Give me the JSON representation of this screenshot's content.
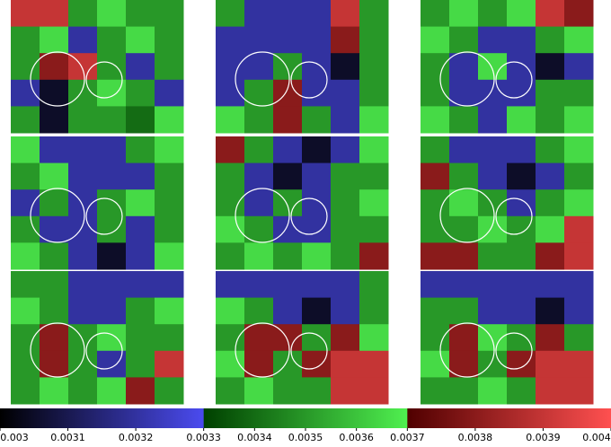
{
  "chart_data": {
    "type": "heatmap",
    "clim": [
      0.003,
      0.004
    ],
    "breaks": [
      0.0033,
      0.0037
    ],
    "colormap": [
      [
        "#000000",
        "#4b4bf0"
      ],
      [
        "#004000",
        "#50f050"
      ],
      [
        "#500000",
        "#ff5050"
      ]
    ],
    "ticks": [
      0.003,
      0.0031,
      0.0032,
      0.0033,
      0.0034,
      0.0035,
      0.0036,
      0.0037,
      0.0038,
      0.0039,
      0.004
    ],
    "panels": [
      {
        "values": [
          [
            0.0039,
            0.0039,
            0.0035,
            0.00365,
            0.0035,
            0.0035
          ],
          [
            0.0035,
            0.00365,
            0.0032,
            0.0035,
            0.00365,
            0.0035
          ],
          [
            0.0035,
            0.0038,
            0.0039,
            0.0035,
            0.0032,
            0.0035
          ],
          [
            0.0032,
            0.00305,
            0.0035,
            0.00365,
            0.0035,
            0.0032
          ],
          [
            0.0035,
            0.00305,
            0.0035,
            0.0035,
            0.0034,
            0.00365
          ]
        ]
      },
      {
        "values": [
          [
            0.0035,
            0.0032,
            0.0032,
            0.0032,
            0.0039,
            0.0035
          ],
          [
            0.0032,
            0.0032,
            0.0032,
            0.0032,
            0.0038,
            0.0035
          ],
          [
            0.0032,
            0.0032,
            0.0035,
            0.0032,
            0.00305,
            0.0035
          ],
          [
            0.0032,
            0.0035,
            0.0038,
            0.0032,
            0.0032,
            0.0035
          ],
          [
            0.00365,
            0.0035,
            0.0038,
            0.0035,
            0.0032,
            0.00365
          ]
        ]
      },
      {
        "values": [
          [
            0.0035,
            0.00365,
            0.0035,
            0.00365,
            0.0039,
            0.0038
          ],
          [
            0.00365,
            0.0035,
            0.0032,
            0.0032,
            0.0035,
            0.00365
          ],
          [
            0.0035,
            0.0032,
            0.00365,
            0.0032,
            0.00305,
            0.0032
          ],
          [
            0.0035,
            0.0032,
            0.0032,
            0.0032,
            0.0035,
            0.0035
          ],
          [
            0.00365,
            0.0035,
            0.0032,
            0.00365,
            0.0035,
            0.00365
          ]
        ]
      },
      {
        "values": [
          [
            0.00365,
            0.0032,
            0.0032,
            0.0032,
            0.0035,
            0.00365
          ],
          [
            0.0035,
            0.00365,
            0.0032,
            0.0032,
            0.0032,
            0.0035
          ],
          [
            0.0032,
            0.0035,
            0.0032,
            0.0035,
            0.00365,
            0.0035
          ],
          [
            0.0035,
            0.0032,
            0.0032,
            0.0035,
            0.0032,
            0.0035
          ],
          [
            0.00365,
            0.0035,
            0.0032,
            0.00305,
            0.0032,
            0.00365
          ]
        ]
      },
      {
        "values": [
          [
            0.0038,
            0.0035,
            0.0032,
            0.00305,
            0.0032,
            0.00365
          ],
          [
            0.0035,
            0.0032,
            0.00305,
            0.0032,
            0.0035,
            0.0035
          ],
          [
            0.0035,
            0.0032,
            0.0035,
            0.0032,
            0.0035,
            0.00365
          ],
          [
            0.00365,
            0.0035,
            0.0032,
            0.0032,
            0.0035,
            0.0035
          ],
          [
            0.0035,
            0.00365,
            0.0035,
            0.00365,
            0.0035,
            0.0038
          ]
        ]
      },
      {
        "values": [
          [
            0.0035,
            0.0032,
            0.0032,
            0.0032,
            0.0035,
            0.00365
          ],
          [
            0.0038,
            0.0035,
            0.0032,
            0.00305,
            0.0032,
            0.0035
          ],
          [
            0.0035,
            0.00365,
            0.0035,
            0.0032,
            0.0035,
            0.00365
          ],
          [
            0.0035,
            0.0035,
            0.00365,
            0.0035,
            0.00365,
            0.0039
          ],
          [
            0.0038,
            0.0038,
            0.0035,
            0.0035,
            0.0038,
            0.0039
          ]
        ]
      },
      {
        "values": [
          [
            0.0035,
            0.0035,
            0.0032,
            0.0032,
            0.0032,
            0.0032
          ],
          [
            0.00365,
            0.0035,
            0.0032,
            0.0032,
            0.0035,
            0.00365
          ],
          [
            0.0035,
            0.0038,
            0.0035,
            0.00365,
            0.0035,
            0.0035
          ],
          [
            0.0035,
            0.0038,
            0.0035,
            0.0032,
            0.0035,
            0.0039
          ],
          [
            0.0035,
            0.00365,
            0.0035,
            0.00365,
            0.0038,
            0.0035
          ]
        ]
      },
      {
        "values": [
          [
            0.0032,
            0.0032,
            0.0032,
            0.0032,
            0.0032,
            0.0035
          ],
          [
            0.00365,
            0.0035,
            0.0032,
            0.00305,
            0.0032,
            0.0035
          ],
          [
            0.0035,
            0.0038,
            0.0038,
            0.0035,
            0.0038,
            0.00365
          ],
          [
            0.00365,
            0.0038,
            0.0035,
            0.0038,
            0.0039,
            0.0039
          ],
          [
            0.0035,
            0.00365,
            0.0035,
            0.0035,
            0.0039,
            0.0039
          ]
        ]
      },
      {
        "values": [
          [
            0.0032,
            0.0032,
            0.0032,
            0.0032,
            0.0032,
            0.0032
          ],
          [
            0.0035,
            0.0035,
            0.0032,
            0.0032,
            0.00305,
            0.0032
          ],
          [
            0.0035,
            0.0038,
            0.00365,
            0.0035,
            0.0038,
            0.0035
          ],
          [
            0.00365,
            0.0038,
            0.0035,
            0.0038,
            0.0039,
            0.0039
          ],
          [
            0.0035,
            0.0035,
            0.00365,
            0.0035,
            0.0039,
            0.0039
          ]
        ]
      }
    ]
  }
}
